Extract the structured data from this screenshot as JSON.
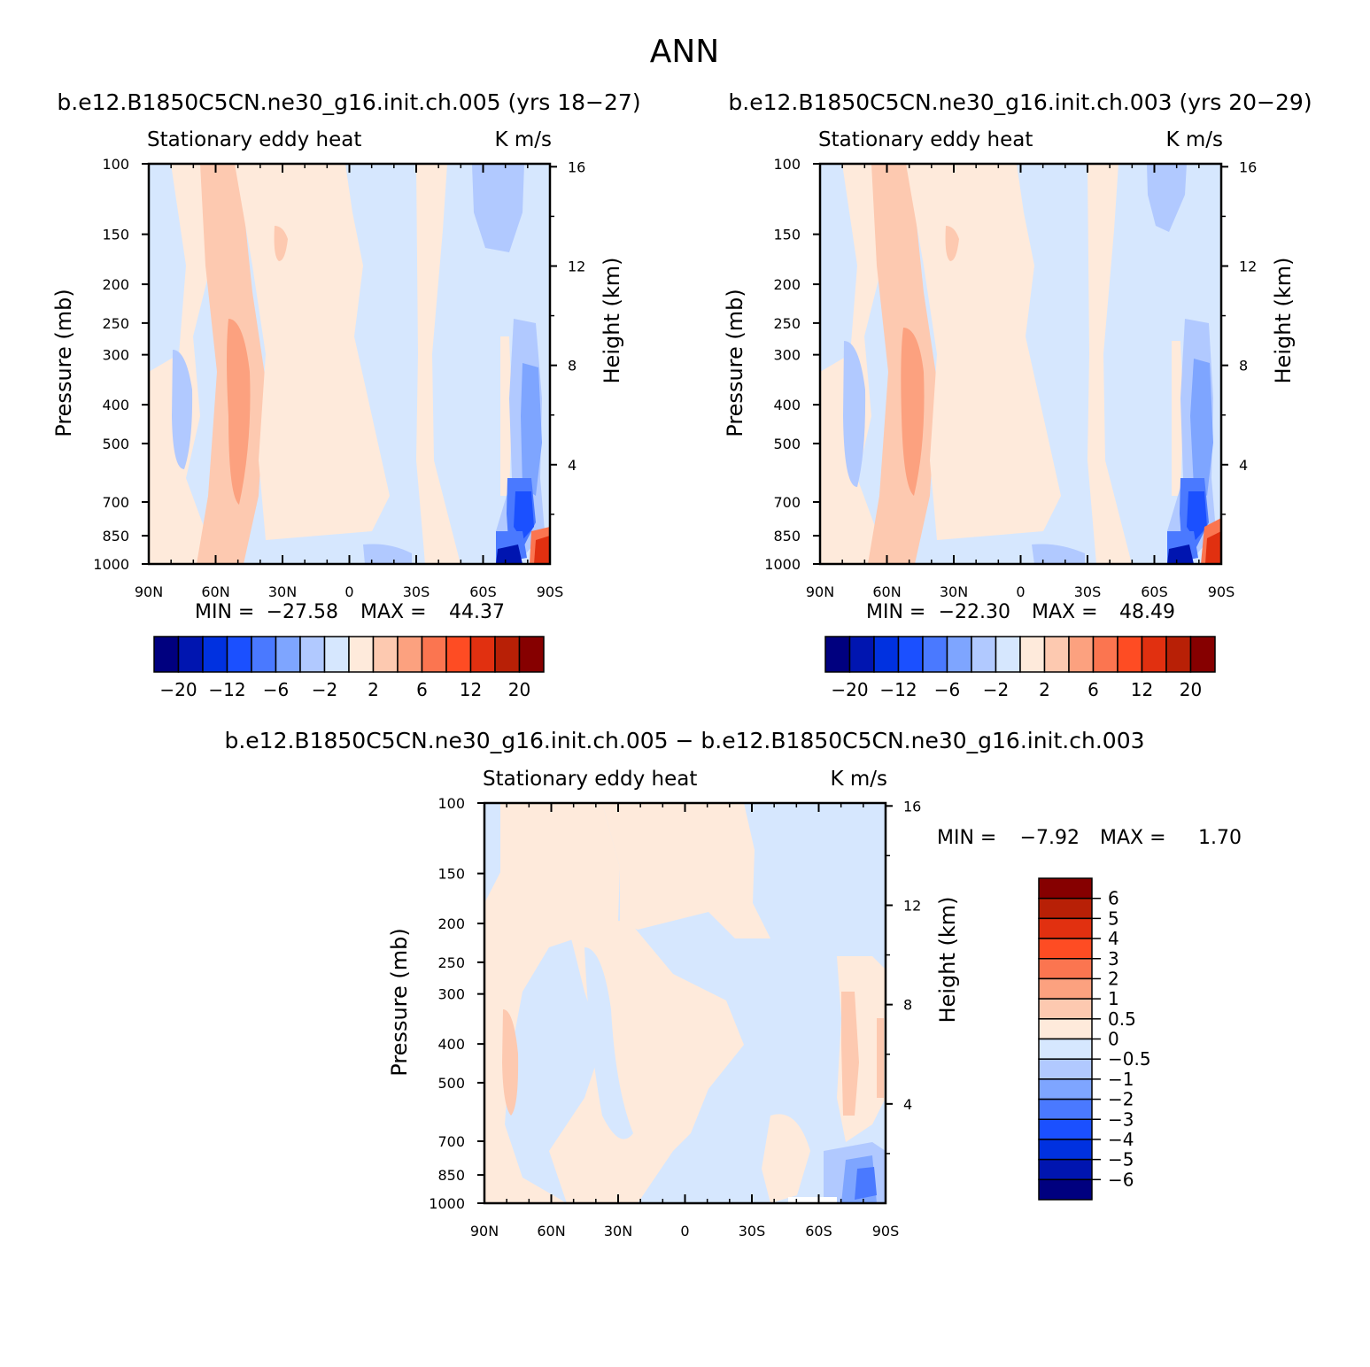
{
  "page_title": "ANN",
  "colors": {
    "palette_abs": [
      "#00007f",
      "#0015b0",
      "#0031e0",
      "#1b50ff",
      "#4a79ff",
      "#7ea5ff",
      "#b1c9ff",
      "#d6e7fe",
      "#feeadb",
      "#fdc9b0",
      "#fca17f",
      "#fb7550",
      "#fe4c23",
      "#e13010",
      "#b82006",
      "#860000"
    ],
    "palette_diff": [
      "#00007f",
      "#0015b0",
      "#0031e0",
      "#1b50ff",
      "#4a79ff",
      "#7ea5ff",
      "#b1c9ff",
      "#d6e7fe",
      "#feeadb",
      "#fdc9b0",
      "#fca17f",
      "#fb7550",
      "#fe4c23",
      "#e13010",
      "#b82006",
      "#860000"
    ]
  },
  "chart_data": [
    {
      "type": "heatmap",
      "case_title": "b.e12.B1850C5CN.ne30_g16.init.ch.005 (yrs 18-27)",
      "left_title": "Stationary eddy heat",
      "right_title": "K m/s",
      "xlabel": "",
      "ylabel": "Pressure (mb)",
      "y2label": "Height (km)",
      "x_ticks": [
        "90N",
        "60N",
        "30N",
        "0",
        "30S",
        "60S",
        "90S"
      ],
      "y_ticks": [
        100,
        150,
        200,
        250,
        300,
        400,
        500,
        700,
        850,
        1000
      ],
      "y2_ticks": [
        16,
        12,
        8,
        4
      ],
      "min_label": "MIN =",
      "min_value": "-27.58",
      "max_label": "MAX =",
      "max_value": "44.37",
      "colorbar_labels": [
        "-20",
        "-12",
        "-6",
        "-2",
        "2",
        "6",
        "12",
        "20"
      ]
    },
    {
      "type": "heatmap",
      "case_title": "b.e12.B1850C5CN.ne30_g16.init.ch.003 (yrs 20-29)",
      "left_title": "Stationary eddy heat",
      "right_title": "K m/s",
      "xlabel": "",
      "ylabel": "Pressure (mb)",
      "y2label": "Height (km)",
      "x_ticks": [
        "90N",
        "60N",
        "30N",
        "0",
        "30S",
        "60S",
        "90S"
      ],
      "y_ticks": [
        100,
        150,
        200,
        250,
        300,
        400,
        500,
        700,
        850,
        1000
      ],
      "y2_ticks": [
        16,
        12,
        8,
        4
      ],
      "min_label": "MIN =",
      "min_value": "-22.30",
      "max_label": "MAX =",
      "max_value": "48.49",
      "colorbar_labels": [
        "-20",
        "-12",
        "-6",
        "-2",
        "2",
        "6",
        "12",
        "20"
      ]
    },
    {
      "type": "heatmap",
      "case_title": "b.e12.B1850C5CN.ne30_g16.init.ch.005 - b.e12.B1850C5CN.ne30_g16.init.ch.003",
      "left_title": "Stationary eddy heat",
      "right_title": "K m/s",
      "xlabel": "",
      "ylabel": "Pressure (mb)",
      "y2label": "Height (km)",
      "x_ticks": [
        "90N",
        "60N",
        "30N",
        "0",
        "30S",
        "60S",
        "90S"
      ],
      "y_ticks": [
        100,
        150,
        200,
        250,
        300,
        400,
        500,
        700,
        850,
        1000
      ],
      "y2_ticks": [
        16,
        12,
        8,
        4
      ],
      "min_label": "MIN =",
      "min_value": "-7.92",
      "max_label": "MAX =",
      "max_value": "1.70",
      "colorbar_labels": [
        "6",
        "5",
        "4",
        "3",
        "2",
        "1",
        "0.5",
        "0",
        "-0.5",
        "-1",
        "-2",
        "-3",
        "-4",
        "-5",
        "-6"
      ]
    }
  ]
}
